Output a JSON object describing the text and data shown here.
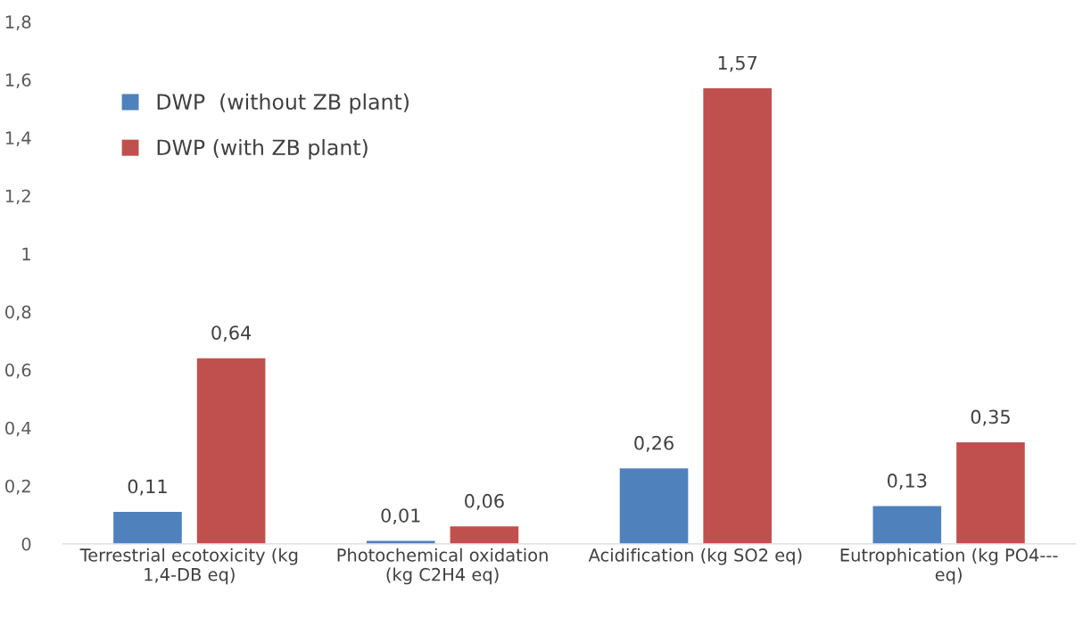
{
  "chart_data": {
    "type": "bar",
    "categories": [
      "Terrestrial ecotoxicity (kg\n1,4-DB eq)",
      "Photochemical oxidation\n(kg C2H4 eq)",
      "Acidification (kg SO2 eq)",
      "Eutrophication (kg PO4---\neq)"
    ],
    "series": [
      {
        "name": "DWP  (without ZB plant)",
        "color": "#4f81bd",
        "values": [
          0.11,
          0.01,
          0.26,
          0.13
        ],
        "value_labels": [
          "0,11",
          "0,01",
          "0,26",
          "0,13"
        ]
      },
      {
        "name": "DWP (with ZB plant)",
        "color": "#c0504d",
        "values": [
          0.64,
          0.06,
          1.57,
          0.35
        ],
        "value_labels": [
          "0,64",
          "0,06",
          "1,57",
          "0,35"
        ]
      }
    ],
    "ylim": [
      0,
      1.8
    ],
    "yticks": [
      0,
      {
        "value": 0.2,
        "label": "0,2"
      },
      {
        "value": 0.4,
        "label": "0,4"
      },
      {
        "value": 0.6,
        "label": "0,6"
      },
      {
        "value": 0.8,
        "label": "0,8"
      },
      1,
      {
        "value": 1.2,
        "label": "1,2"
      },
      {
        "value": 1.4,
        "label": "1,4"
      },
      {
        "value": 1.6,
        "label": "1,6"
      },
      {
        "value": 1.8,
        "label": "1,8"
      }
    ],
    "grid": false,
    "legend": "top left"
  }
}
